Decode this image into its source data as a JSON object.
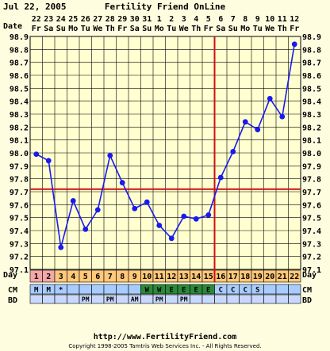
{
  "header": {
    "date": "Jul 22, 2005",
    "title": "Fertility Friend OnLine"
  },
  "row_labels": {
    "date": "Date",
    "day": "Day",
    "cm": "CM",
    "bd": "BD"
  },
  "footer": {
    "url": "http://www.FertilityFriend.com",
    "copyright": "Copyright 1998-2005 Tamtris Web Services Inc. - All Rights Reserved."
  },
  "chart_data": {
    "type": "line",
    "title": "Fertility Friend OnLine",
    "ylim": [
      97.1,
      98.9
    ],
    "ytick_step": 0.1,
    "ytick_labels": [
      "98.9",
      "98.8",
      "98.7",
      "98.6",
      "98.5",
      "98.4",
      "98.3",
      "98.2",
      "98.1",
      "98.0",
      "97.9",
      "97.8",
      "97.7",
      "97.6",
      "97.5",
      "97.4",
      "97.3",
      "97.2",
      "97.1"
    ],
    "date_numbers": [
      "22",
      "23",
      "24",
      "25",
      "26",
      "27",
      "28",
      "29",
      "30",
      "31",
      "1",
      "2",
      "3",
      "4",
      "5",
      "6",
      "7",
      "8",
      "9",
      "10",
      "11",
      "12"
    ],
    "weekdays": [
      "Fr",
      "Sa",
      "Su",
      "Mo",
      "Tu",
      "We",
      "Th",
      "Fr",
      "Sa",
      "Su",
      "Mo",
      "Tu",
      "We",
      "Th",
      "Fr",
      "Sa",
      "Su",
      "Mo",
      "Tu",
      "We",
      "Th",
      "Fr"
    ],
    "cycle_days": [
      1,
      2,
      3,
      4,
      5,
      6,
      7,
      8,
      9,
      10,
      11,
      12,
      13,
      14,
      15,
      16,
      17,
      18,
      19,
      20,
      21,
      22
    ],
    "temperatures": [
      97.99,
      97.94,
      97.27,
      97.63,
      97.41,
      97.56,
      97.98,
      97.77,
      97.57,
      97.62,
      97.44,
      97.34,
      97.51,
      97.49,
      97.52,
      97.81,
      98.01,
      98.24,
      98.18,
      98.42,
      98.28,
      98.84
    ],
    "coverline": 97.72,
    "ovulation_day": 15,
    "menses": [
      "M",
      "M",
      "*",
      "",
      "",
      "",
      "",
      "",
      "",
      "",
      "",
      "",
      "",
      "",
      "",
      "",
      "",
      "",
      "",
      "",
      "",
      ""
    ],
    "cm": [
      "",
      "",
      "",
      "",
      "",
      "",
      "",
      "",
      "",
      "W",
      "W",
      "E",
      "E",
      "E",
      "E",
      "C",
      "C",
      "C",
      "S",
      "",
      "",
      ""
    ],
    "bd": [
      "",
      "",
      "",
      "",
      "PM",
      "",
      "PM",
      "",
      "AM",
      "",
      "PM",
      "",
      "PM",
      "",
      "",
      "",
      "",
      "",
      "",
      "",
      "",
      ""
    ],
    "colors": {
      "background": "#fffde0",
      "grid": "#000000",
      "line": "#1a1aee",
      "marker": "#1a1aee",
      "coverline": "#cc1111",
      "menses_cell": "#f4a8a8",
      "day_cell": "#ffc87a",
      "cm_cell": "#a8ccff",
      "cm_fertile": "#2b8a3a",
      "bd_cell": "#c8d8ff",
      "chart_fill": "#ffffd0"
    }
  }
}
